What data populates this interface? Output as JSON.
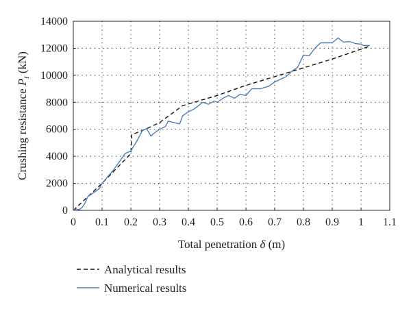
{
  "chart_data": {
    "type": "line",
    "title": "",
    "xlabel_text": "Total penetration ",
    "xlabel_symbol": "δ",
    "xlabel_unit": " (m)",
    "ylabel_text": "Crushing resistance ",
    "ylabel_symbol": "P",
    "ylabel_sub": "t",
    "ylabel_unit": " (kN)",
    "xlim": [
      0,
      1.1
    ],
    "ylim": [
      0,
      14000
    ],
    "xticks": [
      "0",
      "0.1",
      "0.2",
      "0.3",
      "0.4",
      "0.5",
      "0.6",
      "0.7",
      "0.8",
      "0.9",
      "1",
      "1.1"
    ],
    "yticks": [
      "0",
      "2000",
      "4000",
      "6000",
      "8000",
      "10000",
      "12000",
      "14000"
    ],
    "xtick_values": [
      0,
      0.1,
      0.2,
      0.3,
      0.4,
      0.5,
      0.6,
      0.7,
      0.8,
      0.9,
      1.0,
      1.1
    ],
    "ytick_values": [
      0,
      2000,
      4000,
      6000,
      8000,
      10000,
      12000,
      14000
    ],
    "grid": true,
    "legend_position": "bottom-left",
    "series": [
      {
        "name": "Analytical results",
        "style": "dashed",
        "color": "#111111",
        "x": [
          0,
          0.05,
          0.1,
          0.15,
          0.2,
          0.203,
          0.25,
          0.3,
          0.38,
          0.5,
          0.6,
          0.7,
          0.8,
          0.9,
          1.03
        ],
        "y": [
          0,
          1000,
          2000,
          3100,
          4200,
          5600,
          6000,
          6500,
          7750,
          8500,
          9250,
          9900,
          10550,
          11200,
          12150
        ]
      },
      {
        "name": "Numerical results",
        "style": "solid",
        "color": "#4a7fb8",
        "x": [
          0,
          0.01,
          0.02,
          0.03,
          0.04,
          0.05,
          0.07,
          0.09,
          0.1,
          0.12,
          0.14,
          0.16,
          0.18,
          0.2,
          0.22,
          0.24,
          0.255,
          0.27,
          0.28,
          0.3,
          0.32,
          0.33,
          0.35,
          0.37,
          0.38,
          0.4,
          0.42,
          0.45,
          0.47,
          0.49,
          0.5,
          0.52,
          0.54,
          0.56,
          0.58,
          0.6,
          0.62,
          0.65,
          0.68,
          0.7,
          0.72,
          0.74,
          0.76,
          0.78,
          0.8,
          0.82,
          0.84,
          0.86,
          0.88,
          0.9,
          0.92,
          0.94,
          0.96,
          0.98,
          1.0,
          1.01,
          1.03
        ],
        "y": [
          0,
          100,
          50,
          200,
          500,
          1000,
          1300,
          1600,
          2000,
          2500,
          3000,
          3600,
          4200,
          4400,
          5100,
          5900,
          6050,
          5500,
          5700,
          6000,
          6200,
          6600,
          6500,
          6400,
          7000,
          7300,
          7500,
          8000,
          7850,
          8100,
          8000,
          8300,
          8500,
          8300,
          8600,
          8500,
          9000,
          9000,
          9200,
          9500,
          9700,
          9900,
          10300,
          10600,
          11500,
          11450,
          12000,
          12400,
          12400,
          12400,
          12750,
          12450,
          12500,
          12350,
          12300,
          12200,
          12200
        ]
      }
    ]
  }
}
